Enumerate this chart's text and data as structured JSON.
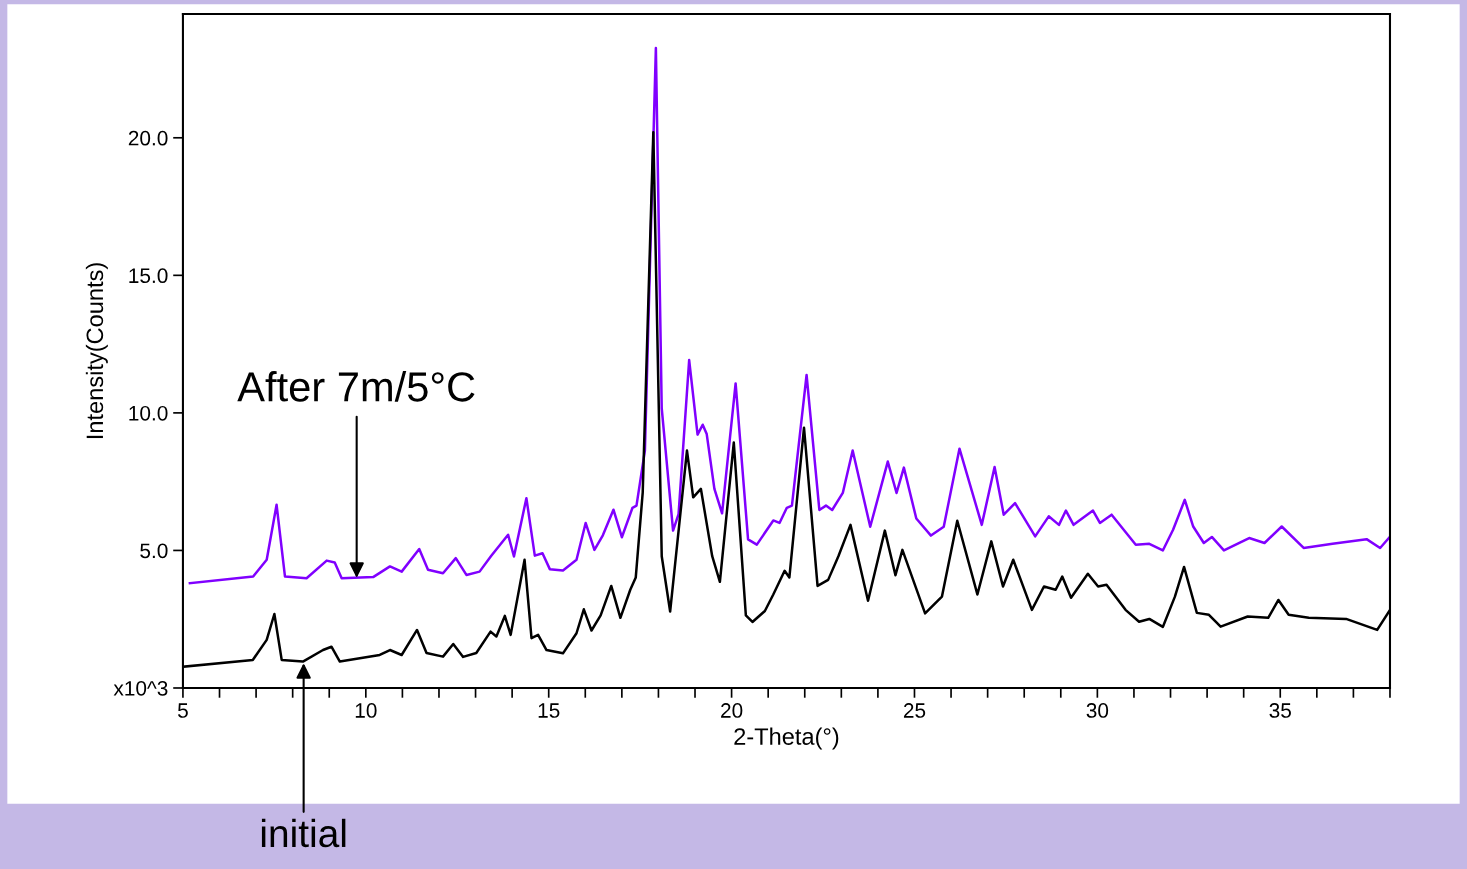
{
  "chart_data": {
    "type": "line",
    "xlabel": "2-Theta(°)",
    "ylabel": "Intensity(Counts)",
    "xlim": [
      5,
      38
    ],
    "ylim": [
      0,
      24.5
    ],
    "xticks": [
      5,
      {
        "value": 6,
        "label": null
      },
      {
        "value": 7,
        "label": null
      },
      {
        "value": 8,
        "label": null
      },
      {
        "value": 9,
        "label": null
      },
      10,
      {
        "value": 11,
        "label": null
      },
      {
        "value": 12,
        "label": null
      },
      {
        "value": 13,
        "label": null
      },
      {
        "value": 14,
        "label": null
      },
      15,
      {
        "value": 16,
        "label": null
      },
      {
        "value": 17,
        "label": null
      },
      {
        "value": 18,
        "label": null
      },
      {
        "value": 19,
        "label": null
      },
      20,
      {
        "value": 21,
        "label": null
      },
      {
        "value": 22,
        "label": null
      },
      {
        "value": 23,
        "label": null
      },
      {
        "value": 24,
        "label": null
      },
      25,
      {
        "value": 26,
        "label": null
      },
      {
        "value": 27,
        "label": null
      },
      {
        "value": 28,
        "label": null
      },
      {
        "value": 29,
        "label": null
      },
      30,
      {
        "value": 31,
        "label": null
      },
      {
        "value": 32,
        "label": null
      },
      {
        "value": 33,
        "label": null
      },
      {
        "value": 34,
        "label": null
      },
      35,
      {
        "value": 36,
        "label": null
      },
      {
        "value": 37,
        "label": null
      },
      {
        "value": 38,
        "label": null
      }
    ],
    "yticks": [
      {
        "value": 0,
        "label": "x10^3"
      },
      {
        "value": 5,
        "label": "5.0"
      },
      {
        "value": 10,
        "label": "10.0"
      },
      {
        "value": 15,
        "label": "15.0"
      },
      {
        "value": 20,
        "label": "20.0"
      }
    ],
    "grid": false,
    "legend": false,
    "marker": "none",
    "line_style": "solid",
    "annotations": [
      {
        "text": "After 7m/5°C",
        "x": 9.75,
        "y": 4.0
      },
      {
        "text": "initial",
        "x": 8.3,
        "y": 0.9
      }
    ],
    "series": [
      {
        "color": "#8000ff",
        "x": [
          5.19,
          6.92,
          7.29,
          7.56,
          7.79,
          8.38,
          8.93,
          9.15,
          9.34,
          10.2,
          10.66,
          10.98,
          11.46,
          11.7,
          12.11,
          12.46,
          12.75,
          13.11,
          13.43,
          13.89,
          14.05,
          14.39,
          14.62,
          14.83,
          15.03,
          15.39,
          15.76,
          16.01,
          16.25,
          16.48,
          16.77,
          17.0,
          17.29,
          17.4,
          17.63,
          17.93,
          18.09,
          18.4,
          18.55,
          18.84,
          19.07,
          19.21,
          19.32,
          19.53,
          19.74,
          20.11,
          20.45,
          20.69,
          21.14,
          21.31,
          21.51,
          21.65,
          22.05,
          22.4,
          22.58,
          22.75,
          23.04,
          23.31,
          23.79,
          24.27,
          24.51,
          24.71,
          25.05,
          25.45,
          25.8,
          26.23,
          26.84,
          27.19,
          27.44,
          27.75,
          28.3,
          28.67,
          28.95,
          29.14,
          29.35,
          29.88,
          30.07,
          30.39,
          31.05,
          31.42,
          31.79,
          32.07,
          32.39,
          32.62,
          32.91,
          33.13,
          33.46,
          34.15,
          34.57,
          35.04,
          35.64,
          36.43,
          37.36,
          37.73,
          38.0
        ],
        "values": [
          3.81,
          4.05,
          4.66,
          6.66,
          4.05,
          3.99,
          4.63,
          4.56,
          3.99,
          4.03,
          4.42,
          4.23,
          5.05,
          4.3,
          4.17,
          4.72,
          4.11,
          4.23,
          4.81,
          5.57,
          4.78,
          6.9,
          4.81,
          4.9,
          4.32,
          4.27,
          4.66,
          6.0,
          5.02,
          5.55,
          6.48,
          5.48,
          6.55,
          6.63,
          8.63,
          23.26,
          10.16,
          5.72,
          6.32,
          11.92,
          9.21,
          9.57,
          9.23,
          7.24,
          6.35,
          11.07,
          5.4,
          5.21,
          6.09,
          6.0,
          6.55,
          6.63,
          11.38,
          6.47,
          6.63,
          6.47,
          7.09,
          8.63,
          5.86,
          8.23,
          7.09,
          8.01,
          6.16,
          5.54,
          5.86,
          8.7,
          5.93,
          8.03,
          6.3,
          6.72,
          5.51,
          6.24,
          5.93,
          6.45,
          5.93,
          6.45,
          6.0,
          6.3,
          5.21,
          5.24,
          5.0,
          5.75,
          6.84,
          5.87,
          5.27,
          5.49,
          5.0,
          5.45,
          5.27,
          5.87,
          5.09,
          5.24,
          5.41,
          5.09,
          5.5
        ]
      },
      {
        "color": "#000000",
        "x": [
          5.05,
          6.91,
          7.29,
          7.5,
          7.7,
          8.28,
          8.83,
          9.06,
          9.29,
          10.38,
          10.66,
          10.98,
          11.4,
          11.66,
          12.11,
          12.39,
          12.66,
          13.02,
          13.41,
          13.57,
          13.8,
          13.96,
          14.34,
          14.53,
          14.71,
          14.94,
          15.39,
          15.76,
          15.96,
          16.17,
          16.42,
          16.71,
          16.96,
          17.23,
          17.38,
          17.57,
          17.86,
          18.09,
          18.32,
          18.78,
          18.95,
          19.16,
          19.47,
          19.68,
          20.06,
          20.39,
          20.57,
          20.91,
          21.14,
          21.45,
          21.58,
          21.98,
          22.35,
          22.64,
          22.92,
          23.25,
          23.73,
          24.19,
          24.48,
          24.67,
          25.29,
          25.75,
          26.17,
          26.72,
          27.1,
          27.42,
          27.7,
          28.21,
          28.54,
          28.86,
          29.04,
          29.28,
          29.74,
          30.02,
          30.25,
          30.77,
          31.14,
          31.42,
          31.79,
          32.12,
          32.37,
          32.72,
          33.05,
          33.37,
          34.11,
          34.67,
          34.95,
          35.23,
          35.78,
          36.8,
          37.65,
          38.0
        ],
        "values": [
          0.78,
          1.02,
          1.75,
          2.69,
          1.02,
          0.96,
          1.38,
          1.5,
          0.96,
          1.2,
          1.38,
          1.2,
          2.11,
          1.27,
          1.14,
          1.6,
          1.13,
          1.27,
          2.05,
          1.87,
          2.62,
          1.93,
          4.66,
          1.81,
          1.93,
          1.38,
          1.26,
          1.99,
          2.86,
          2.09,
          2.64,
          3.71,
          2.55,
          3.57,
          4.02,
          7.1,
          20.2,
          4.79,
          2.78,
          8.63,
          6.93,
          7.24,
          4.79,
          3.86,
          8.92,
          2.64,
          2.4,
          2.8,
          3.4,
          4.26,
          4.02,
          9.46,
          3.71,
          3.93,
          4.79,
          5.93,
          3.17,
          5.72,
          4.1,
          5.02,
          2.71,
          3.32,
          6.08,
          3.4,
          5.33,
          3.69,
          4.66,
          2.84,
          3.69,
          3.57,
          4.05,
          3.28,
          4.15,
          3.69,
          3.75,
          2.84,
          2.41,
          2.51,
          2.22,
          3.32,
          4.4,
          2.73,
          2.66,
          2.23,
          2.6,
          2.55,
          3.2,
          2.66,
          2.55,
          2.51,
          2.11,
          2.84
        ]
      }
    ]
  }
}
